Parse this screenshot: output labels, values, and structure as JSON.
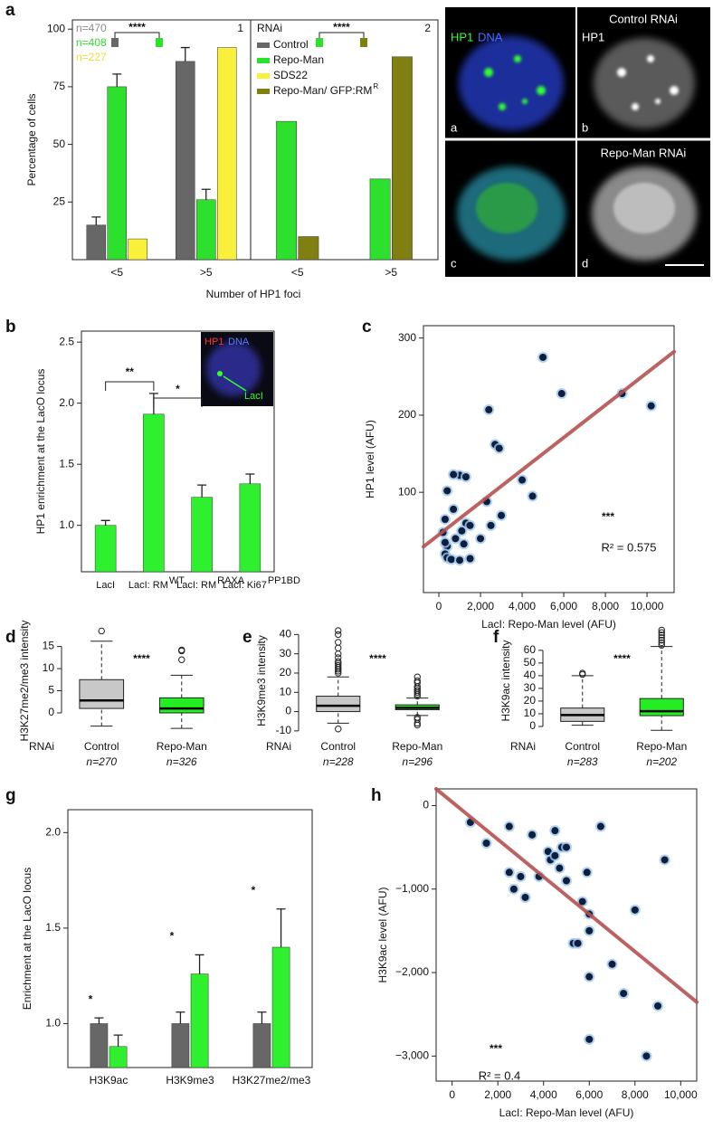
{
  "chart_data": [
    {
      "type": "bar",
      "panel": "a",
      "subpanel": "1",
      "ylabel": "Percentage of cells",
      "xlabel": "Number of HP1 foci",
      "categories": [
        "<5",
        ">5"
      ],
      "series": [
        {
          "name": "Control",
          "color": "#676767",
          "values": [
            15,
            86
          ],
          "errors": [
            3.5,
            6
          ]
        },
        {
          "name": "Repo-Man",
          "color": "#2ee02e",
          "values": [
            75,
            26
          ],
          "errors": [
            5.5,
            4.5
          ]
        },
        {
          "name": "SDS22",
          "color": "#f8f03a",
          "values": [
            9,
            92
          ]
        }
      ],
      "ylim": [
        0,
        104
      ],
      "yticks": [
        25,
        50,
        75,
        100
      ],
      "n_labels": [
        {
          "text": "n=470",
          "color": "#8a8a8a"
        },
        {
          "text": "n=408",
          "color": "#2ee02e"
        },
        {
          "text": "n=227",
          "color": "#f0dc30"
        }
      ],
      "significance": [
        "****"
      ]
    },
    {
      "type": "bar",
      "subpanel": "2",
      "legend_title": "RNAi",
      "categories": [
        "<5",
        ">5"
      ],
      "series": [
        {
          "color": "#2ee02e",
          "values": [
            60,
            35
          ]
        },
        {
          "name": "Repo-Man/ GFP:RM",
          "name_superscript": "R",
          "color": "#7f7f12",
          "values": [
            10,
            88
          ]
        }
      ],
      "ylim": [
        0,
        104
      ],
      "significance": [
        "****"
      ]
    },
    {
      "type": "bar",
      "panel": "b",
      "ylabel": "HP1 enrichment at the LacO locus",
      "categories": [
        "LacI",
        "LacI: RM",
        "LacI: RM",
        "LacI: Ki67"
      ],
      "category_superscripts": [
        null,
        "WT",
        "RAXA",
        "PP1BD"
      ],
      "series": [
        {
          "color": "#2ef02e",
          "values": [
            1.0,
            1.91,
            1.23,
            1.34
          ],
          "errors": [
            0.04,
            0.17,
            0.1,
            0.08
          ]
        }
      ],
      "ylim": [
        0.62,
        2.59
      ],
      "yticks": [
        {
          "value": 1,
          "label": "1.0"
        },
        {
          "value": 1.5,
          "label": "1.5"
        },
        {
          "value": 2,
          "label": "2.0"
        },
        {
          "value": 2.5,
          "label": "2.5"
        }
      ],
      "significance": [
        "**",
        "*"
      ],
      "inset_labels": [
        "HP1",
        "DNA",
        "LacI"
      ]
    },
    {
      "type": "scatter",
      "panel": "c",
      "xlabel": "LacI: Repo-Man level (AFU)",
      "ylabel": "HP1 level (AFU)",
      "x": [
        5000,
        5900,
        8800,
        10200,
        2400,
        2700,
        2900,
        4000,
        4500,
        1000,
        1300,
        700,
        2300,
        2500,
        3000,
        400,
        300,
        1300,
        1500,
        800,
        1100,
        200,
        400,
        300,
        400,
        600,
        1000,
        1500,
        2000,
        700,
        1200,
        300
      ],
      "values": [
        275,
        228,
        228,
        212,
        207,
        162,
        157,
        116,
        95,
        122,
        120,
        123,
        88,
        57,
        70,
        102,
        65,
        60,
        57,
        40,
        50,
        48,
        30,
        20,
        15,
        13,
        12,
        14,
        40,
        78,
        33,
        35
      ],
      "color": "#0d1f3c",
      "fit": {
        "intercept": 45,
        "slope": 0.021,
        "color": "#b5524f"
      },
      "xlim": [
        -740,
        11300
      ],
      "ylim": [
        -30,
        316
      ],
      "xticks": [
        0,
        {
          "value": 2000,
          "label": "2,000"
        },
        {
          "value": 4000,
          "label": "4,000"
        },
        {
          "value": 6000,
          "label": "6,000"
        },
        {
          "value": 8000,
          "label": "8,000"
        },
        {
          "value": 10000,
          "label": "10,000"
        }
      ],
      "yticks": [
        100,
        200,
        300
      ],
      "annotations": [
        "***",
        "R² = 0.575"
      ]
    },
    {
      "type": "box",
      "panel": "d",
      "ylabel": "H3K27me2/me3 intensity",
      "group_label": "RNAi",
      "categories": [
        "Control",
        "Repo-Man"
      ],
      "n_labels": [
        "n=270",
        "n=326"
      ],
      "colors": [
        "#c8c8c8",
        "#22ee22"
      ],
      "boxes": [
        {
          "whisker_low": -3,
          "q1": 1,
          "median": 2.8,
          "q3": 7.5,
          "whisker_high": 16.2,
          "outliers": [
            18.5
          ]
        },
        {
          "whisker_low": -3.5,
          "q1": 0,
          "median": 1,
          "q3": 3.4,
          "whisker_high": 8.5,
          "outliers": [
            12,
            14,
            14.2
          ]
        }
      ],
      "ylim": [
        -4.5,
        19
      ],
      "yticks": [
        0,
        5,
        10,
        15
      ],
      "significance": [
        "****"
      ]
    },
    {
      "type": "box",
      "panel": "e",
      "ylabel": "H3K9me3 intensity",
      "group_label": "RNAi",
      "categories": [
        "Control",
        "Repo-Man"
      ],
      "n_labels": [
        "n=228",
        "n=296"
      ],
      "colors": [
        "#c8c8c8",
        "#22ee22"
      ],
      "boxes": [
        {
          "whisker_low": -6,
          "q1": 0,
          "median": 3,
          "q3": 8,
          "whisker_high": 18,
          "outliers": [
            20,
            21,
            22,
            23,
            24,
            25,
            26,
            28,
            30,
            33,
            36,
            40,
            42,
            -9
          ]
        },
        {
          "whisker_low": -2,
          "q1": 1,
          "median": 2,
          "q3": 3.5,
          "whisker_high": 7,
          "outliers": [
            8,
            9,
            10,
            11,
            12,
            13,
            15,
            16,
            18,
            -3,
            -4,
            -6,
            -7
          ]
        }
      ],
      "ylim": [
        -11,
        43
      ],
      "yticks": [
        -10,
        0,
        10,
        20,
        30,
        40
      ],
      "significance": [
        "****"
      ]
    },
    {
      "type": "box",
      "panel": "f",
      "ylabel": "H3K9ac intensity",
      "group_label": "RNAi",
      "categories": [
        "Control",
        "Repo-Man"
      ],
      "n_labels": [
        "n=283",
        "n=202"
      ],
      "colors": [
        "#c8c8c8",
        "#22ee22"
      ],
      "boxes": [
        {
          "whisker_low": 1,
          "q1": 4,
          "median": 9,
          "q3": 14.5,
          "whisker_high": 40,
          "outliers": [
            41,
            42
          ]
        },
        {
          "whisker_low": -3,
          "q1": 8.5,
          "median": 12,
          "q3": 22,
          "whisker_high": 63,
          "outliers": [
            64,
            66,
            68,
            70,
            72,
            74,
            76
          ]
        }
      ],
      "ylim": [
        -5,
        77
      ],
      "yticks": [
        0,
        10,
        20,
        30,
        40,
        50,
        60
      ],
      "significance": [
        "****"
      ]
    },
    {
      "type": "bar",
      "panel": "g",
      "ylabel": "Enrichment at the LacO locus",
      "categories": [
        "H3K9ac",
        "H3K9me3",
        "H3K27me2/me3"
      ],
      "series": [
        {
          "color": "#676767",
          "values": [
            1.0,
            1.0,
            1.0
          ],
          "errors": [
            0.03,
            0.06,
            0.06
          ]
        },
        {
          "color": "#2ef02e",
          "values": [
            0.88,
            1.26,
            1.4
          ],
          "errors": [
            0.06,
            0.1,
            0.2
          ]
        }
      ],
      "ylim": [
        0.77,
        2.12
      ],
      "yticks": [
        {
          "value": 1,
          "label": "1.0"
        },
        {
          "value": 1.5,
          "label": "1.5"
        },
        {
          "value": 2,
          "label": "2.0"
        }
      ],
      "significance": [
        "*",
        "*",
        "*"
      ]
    },
    {
      "type": "scatter",
      "panel": "h",
      "xlabel": "LacI: Repo-Man level (AFU)",
      "ylabel": "H3K9ac level (AFU)",
      "x": [
        800,
        1500,
        2500,
        2500,
        2700,
        3000,
        3200,
        3500,
        3800,
        4200,
        4300,
        4500,
        4500,
        4700,
        4800,
        5000,
        5000,
        5300,
        5500,
        5700,
        5900,
        6000,
        6000,
        6000,
        6000,
        6500,
        7000,
        7500,
        8000,
        8500,
        9000,
        9300
      ],
      "values": [
        -200,
        -450,
        -250,
        -800,
        -1000,
        -850,
        -1100,
        -350,
        -850,
        -550,
        -650,
        -600,
        -300,
        -750,
        -500,
        -500,
        -900,
        -1650,
        -1650,
        -1150,
        -800,
        -1300,
        -1500,
        -2050,
        -2800,
        -250,
        -1900,
        -2250,
        -1250,
        -3000,
        -2400,
        -650
      ],
      "color": "#0d1f3c",
      "fit": {
        "intercept": 43,
        "slope": -0.224,
        "color": "#b5524f"
      },
      "xlim": [
        -700,
        10700
      ],
      "ylim": [
        -3300,
        200
      ],
      "xticks": [
        0,
        {
          "value": 2000,
          "label": "2,000"
        },
        {
          "value": 4000,
          "label": "4,000"
        },
        {
          "value": 6000,
          "label": "6,000"
        },
        {
          "value": 8000,
          "label": "8,000"
        },
        {
          "value": 10000,
          "label": "10,000"
        }
      ],
      "yticks": [
        0,
        {
          "value": -1000,
          "label": "−1,000"
        },
        {
          "value": -2000,
          "label": "−2,000"
        },
        {
          "value": -3000,
          "label": "−3,000"
        }
      ],
      "annotations": [
        "***",
        "R² = 0.4"
      ]
    }
  ],
  "micrographs": {
    "rows": [
      {
        "title": "Control RNAi",
        "left_labels": [
          "HP1",
          "DNA"
        ],
        "left_letter": "a",
        "right_label": "HP1",
        "right_letter": "b"
      },
      {
        "title": "Repo-Man RNAi",
        "left_letter": "c",
        "right_letter": "d"
      }
    ]
  }
}
